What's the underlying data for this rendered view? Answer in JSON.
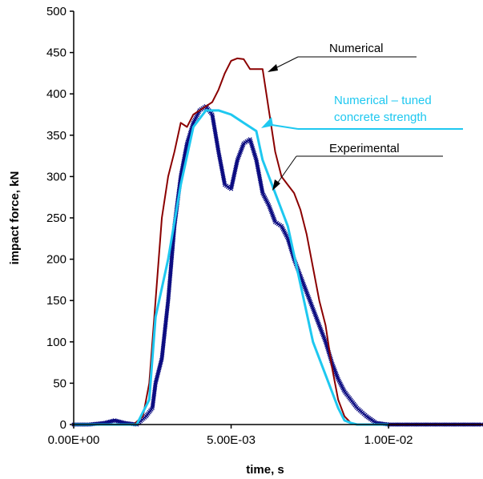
{
  "chart_data": {
    "type": "line",
    "title": "",
    "xlabel": "time, s",
    "ylabel": "impact force, kN",
    "xlim": [
      0,
      0.013
    ],
    "ylim": [
      0,
      500
    ],
    "xticks": [
      0,
      0.005,
      0.01
    ],
    "xtick_labels": [
      "0.00E+00",
      "5.00E-03",
      "1.00E-02"
    ],
    "yticks": [
      0,
      50,
      100,
      150,
      200,
      250,
      300,
      350,
      400,
      450,
      500
    ],
    "ytick_labels": [
      "0",
      "50",
      "100",
      "150",
      "200",
      "250",
      "300",
      "350",
      "400",
      "450",
      "500"
    ],
    "grid": false,
    "legend": "none",
    "series": [
      {
        "name": "Experimental",
        "color": "#0a0a80",
        "marker": "x",
        "x": [
          0,
          0.0005,
          0.001,
          0.0013,
          0.0016,
          0.002,
          0.0023,
          0.0025,
          0.0026,
          0.0028,
          0.003,
          0.0032,
          0.0034,
          0.0036,
          0.0038,
          0.004,
          0.0042,
          0.0044,
          0.0046,
          0.0048,
          0.005,
          0.0052,
          0.0054,
          0.0056,
          0.0058,
          0.006,
          0.0062,
          0.0064,
          0.0066,
          0.0068,
          0.007,
          0.0072,
          0.0074,
          0.0076,
          0.0078,
          0.008,
          0.0082,
          0.0084,
          0.0086,
          0.0088,
          0.009,
          0.0093,
          0.0096,
          0.01,
          0.011,
          0.012,
          0.013
        ],
        "y": [
          0,
          0,
          2,
          5,
          2,
          0,
          10,
          20,
          50,
          80,
          150,
          240,
          300,
          340,
          365,
          380,
          385,
          375,
          330,
          290,
          285,
          320,
          340,
          345,
          320,
          280,
          265,
          245,
          240,
          225,
          200,
          180,
          160,
          140,
          120,
          100,
          75,
          55,
          40,
          30,
          20,
          10,
          2,
          0,
          0,
          0,
          0
        ]
      },
      {
        "name": "Numerical",
        "color": "#8b0000",
        "marker": "none",
        "x": [
          0,
          0.001,
          0.0019,
          0.0022,
          0.0024,
          0.0026,
          0.0028,
          0.003,
          0.0032,
          0.0034,
          0.0036,
          0.0038,
          0.004,
          0.0042,
          0.0044,
          0.0046,
          0.0048,
          0.005,
          0.0052,
          0.0054,
          0.0056,
          0.0058,
          0.006,
          0.0062,
          0.0064,
          0.0066,
          0.0068,
          0.007,
          0.0072,
          0.0074,
          0.0076,
          0.0078,
          0.008,
          0.0082,
          0.0084,
          0.0086,
          0.0088,
          0.009,
          0.0095,
          0.01,
          0.013
        ],
        "y": [
          0,
          0,
          0,
          10,
          50,
          150,
          250,
          300,
          330,
          365,
          360,
          375,
          380,
          385,
          390,
          405,
          425,
          440,
          443,
          442,
          430,
          430,
          430,
          380,
          330,
          300,
          290,
          280,
          260,
          230,
          190,
          150,
          120,
          70,
          30,
          10,
          2,
          0,
          0,
          0,
          0
        ]
      },
      {
        "name": "Numerical – tuned concrete strength",
        "color": "#1ec8f0",
        "marker": "none",
        "x": [
          0,
          0.002,
          0.0024,
          0.0026,
          0.003,
          0.0034,
          0.0038,
          0.0042,
          0.0046,
          0.005,
          0.0054,
          0.0056,
          0.0058,
          0.006,
          0.0064,
          0.0068,
          0.0072,
          0.0076,
          0.008,
          0.0084,
          0.0086,
          0.0088,
          0.009,
          0.0095,
          0.01
        ],
        "y": [
          0,
          0,
          30,
          130,
          200,
          290,
          360,
          380,
          380,
          375,
          365,
          360,
          355,
          320,
          280,
          240,
          170,
          100,
          60,
          20,
          5,
          2,
          0,
          0,
          0
        ]
      }
    ],
    "annotations": [
      {
        "text": "Numerical",
        "color": "#000000"
      },
      {
        "text": "Numerical – tuned",
        "color": "#1ec8f0"
      },
      {
        "text": "concrete strength",
        "color": "#1ec8f0"
      },
      {
        "text": "Experimental",
        "color": "#000000"
      }
    ]
  }
}
